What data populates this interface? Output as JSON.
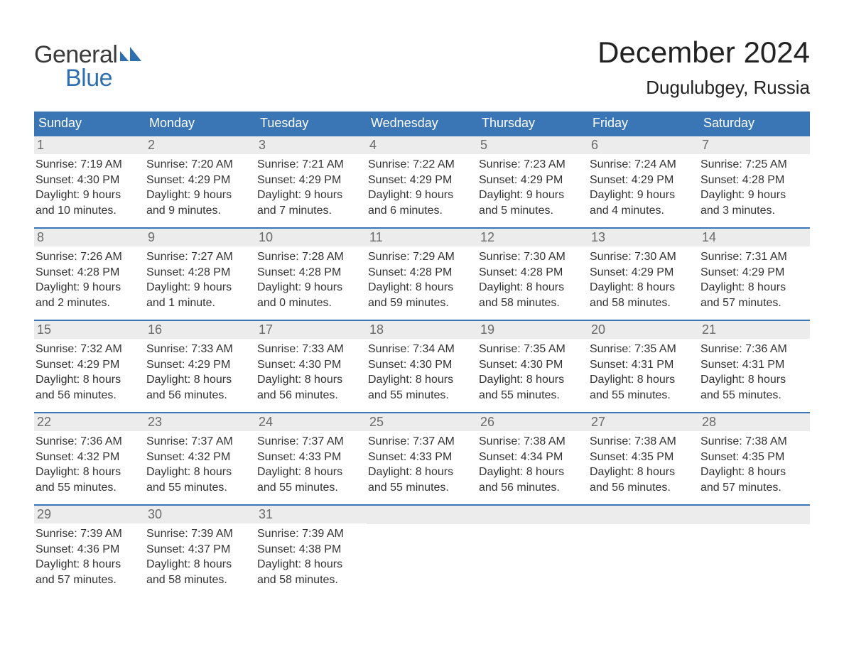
{
  "logo": {
    "text1": "General",
    "text2": "Blue"
  },
  "title": "December 2024",
  "location": "Dugulubgey, Russia",
  "colors": {
    "header_bg": "#3a76b6",
    "header_text": "#ffffff",
    "day_num_bg": "#ececec",
    "day_num_text": "#6a6a6a",
    "body_text": "#333333",
    "accent_border": "#3a76b6",
    "logo_blue": "#2f6fb0",
    "background": "#ffffff"
  },
  "typography": {
    "title_pt": 42,
    "location_pt": 26,
    "header_pt": 18,
    "daynum_pt": 18,
    "body_pt": 16,
    "logo_pt": 34
  },
  "day_headers": [
    "Sunday",
    "Monday",
    "Tuesday",
    "Wednesday",
    "Thursday",
    "Friday",
    "Saturday"
  ],
  "weeks": [
    [
      {
        "num": "1",
        "sunrise": "Sunrise: 7:19 AM",
        "sunset": "Sunset: 4:30 PM",
        "dl1": "Daylight: 9 hours",
        "dl2": "and 10 minutes."
      },
      {
        "num": "2",
        "sunrise": "Sunrise: 7:20 AM",
        "sunset": "Sunset: 4:29 PM",
        "dl1": "Daylight: 9 hours",
        "dl2": "and 9 minutes."
      },
      {
        "num": "3",
        "sunrise": "Sunrise: 7:21 AM",
        "sunset": "Sunset: 4:29 PM",
        "dl1": "Daylight: 9 hours",
        "dl2": "and 7 minutes."
      },
      {
        "num": "4",
        "sunrise": "Sunrise: 7:22 AM",
        "sunset": "Sunset: 4:29 PM",
        "dl1": "Daylight: 9 hours",
        "dl2": "and 6 minutes."
      },
      {
        "num": "5",
        "sunrise": "Sunrise: 7:23 AM",
        "sunset": "Sunset: 4:29 PM",
        "dl1": "Daylight: 9 hours",
        "dl2": "and 5 minutes."
      },
      {
        "num": "6",
        "sunrise": "Sunrise: 7:24 AM",
        "sunset": "Sunset: 4:29 PM",
        "dl1": "Daylight: 9 hours",
        "dl2": "and 4 minutes."
      },
      {
        "num": "7",
        "sunrise": "Sunrise: 7:25 AM",
        "sunset": "Sunset: 4:28 PM",
        "dl1": "Daylight: 9 hours",
        "dl2": "and 3 minutes."
      }
    ],
    [
      {
        "num": "8",
        "sunrise": "Sunrise: 7:26 AM",
        "sunset": "Sunset: 4:28 PM",
        "dl1": "Daylight: 9 hours",
        "dl2": "and 2 minutes."
      },
      {
        "num": "9",
        "sunrise": "Sunrise: 7:27 AM",
        "sunset": "Sunset: 4:28 PM",
        "dl1": "Daylight: 9 hours",
        "dl2": "and 1 minute."
      },
      {
        "num": "10",
        "sunrise": "Sunrise: 7:28 AM",
        "sunset": "Sunset: 4:28 PM",
        "dl1": "Daylight: 9 hours",
        "dl2": "and 0 minutes."
      },
      {
        "num": "11",
        "sunrise": "Sunrise: 7:29 AM",
        "sunset": "Sunset: 4:28 PM",
        "dl1": "Daylight: 8 hours",
        "dl2": "and 59 minutes."
      },
      {
        "num": "12",
        "sunrise": "Sunrise: 7:30 AM",
        "sunset": "Sunset: 4:28 PM",
        "dl1": "Daylight: 8 hours",
        "dl2": "and 58 minutes."
      },
      {
        "num": "13",
        "sunrise": "Sunrise: 7:30 AM",
        "sunset": "Sunset: 4:29 PM",
        "dl1": "Daylight: 8 hours",
        "dl2": "and 58 minutes."
      },
      {
        "num": "14",
        "sunrise": "Sunrise: 7:31 AM",
        "sunset": "Sunset: 4:29 PM",
        "dl1": "Daylight: 8 hours",
        "dl2": "and 57 minutes."
      }
    ],
    [
      {
        "num": "15",
        "sunrise": "Sunrise: 7:32 AM",
        "sunset": "Sunset: 4:29 PM",
        "dl1": "Daylight: 8 hours",
        "dl2": "and 56 minutes."
      },
      {
        "num": "16",
        "sunrise": "Sunrise: 7:33 AM",
        "sunset": "Sunset: 4:29 PM",
        "dl1": "Daylight: 8 hours",
        "dl2": "and 56 minutes."
      },
      {
        "num": "17",
        "sunrise": "Sunrise: 7:33 AM",
        "sunset": "Sunset: 4:30 PM",
        "dl1": "Daylight: 8 hours",
        "dl2": "and 56 minutes."
      },
      {
        "num": "18",
        "sunrise": "Sunrise: 7:34 AM",
        "sunset": "Sunset: 4:30 PM",
        "dl1": "Daylight: 8 hours",
        "dl2": "and 55 minutes."
      },
      {
        "num": "19",
        "sunrise": "Sunrise: 7:35 AM",
        "sunset": "Sunset: 4:30 PM",
        "dl1": "Daylight: 8 hours",
        "dl2": "and 55 minutes."
      },
      {
        "num": "20",
        "sunrise": "Sunrise: 7:35 AM",
        "sunset": "Sunset: 4:31 PM",
        "dl1": "Daylight: 8 hours",
        "dl2": "and 55 minutes."
      },
      {
        "num": "21",
        "sunrise": "Sunrise: 7:36 AM",
        "sunset": "Sunset: 4:31 PM",
        "dl1": "Daylight: 8 hours",
        "dl2": "and 55 minutes."
      }
    ],
    [
      {
        "num": "22",
        "sunrise": "Sunrise: 7:36 AM",
        "sunset": "Sunset: 4:32 PM",
        "dl1": "Daylight: 8 hours",
        "dl2": "and 55 minutes."
      },
      {
        "num": "23",
        "sunrise": "Sunrise: 7:37 AM",
        "sunset": "Sunset: 4:32 PM",
        "dl1": "Daylight: 8 hours",
        "dl2": "and 55 minutes."
      },
      {
        "num": "24",
        "sunrise": "Sunrise: 7:37 AM",
        "sunset": "Sunset: 4:33 PM",
        "dl1": "Daylight: 8 hours",
        "dl2": "and 55 minutes."
      },
      {
        "num": "25",
        "sunrise": "Sunrise: 7:37 AM",
        "sunset": "Sunset: 4:33 PM",
        "dl1": "Daylight: 8 hours",
        "dl2": "and 55 minutes."
      },
      {
        "num": "26",
        "sunrise": "Sunrise: 7:38 AM",
        "sunset": "Sunset: 4:34 PM",
        "dl1": "Daylight: 8 hours",
        "dl2": "and 56 minutes."
      },
      {
        "num": "27",
        "sunrise": "Sunrise: 7:38 AM",
        "sunset": "Sunset: 4:35 PM",
        "dl1": "Daylight: 8 hours",
        "dl2": "and 56 minutes."
      },
      {
        "num": "28",
        "sunrise": "Sunrise: 7:38 AM",
        "sunset": "Sunset: 4:35 PM",
        "dl1": "Daylight: 8 hours",
        "dl2": "and 57 minutes."
      }
    ],
    [
      {
        "num": "29",
        "sunrise": "Sunrise: 7:39 AM",
        "sunset": "Sunset: 4:36 PM",
        "dl1": "Daylight: 8 hours",
        "dl2": "and 57 minutes."
      },
      {
        "num": "30",
        "sunrise": "Sunrise: 7:39 AM",
        "sunset": "Sunset: 4:37 PM",
        "dl1": "Daylight: 8 hours",
        "dl2": "and 58 minutes."
      },
      {
        "num": "31",
        "sunrise": "Sunrise: 7:39 AM",
        "sunset": "Sunset: 4:38 PM",
        "dl1": "Daylight: 8 hours",
        "dl2": "and 58 minutes."
      },
      {
        "empty": true
      },
      {
        "empty": true
      },
      {
        "empty": true
      },
      {
        "empty": true
      }
    ]
  ]
}
